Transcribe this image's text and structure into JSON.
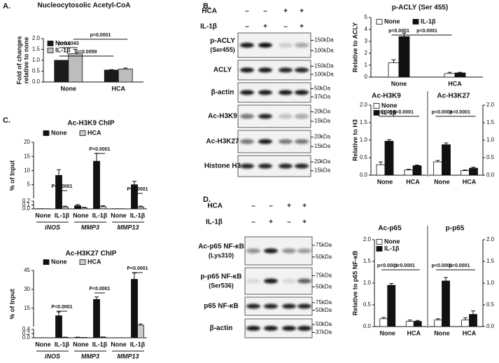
{
  "figure": {
    "panel_labels": [
      "A.",
      "B.",
      "C.",
      "D."
    ]
  },
  "chart_data": [
    {
      "type": "bar",
      "title": "Nucleocytosolic Acetyl-CoA",
      "y_label": [
        "Fold of changes",
        "relative to none"
      ],
      "categories": [
        "None",
        "HCA"
      ],
      "series": [
        {
          "name": "None",
          "color": "#1a1a1a",
          "values": [
            1.0,
            0.55
          ],
          "errors": [
            0.0,
            0.02
          ]
        },
        {
          "name": "IL-1β",
          "color": "#bdbdbd",
          "values": [
            1.3,
            0.6
          ],
          "errors": [
            0.2,
            0.04
          ]
        }
      ],
      "ylim": [
        0,
        2
      ],
      "yticks": [
        {
          "value": 0,
          "label": "0.0"
        },
        0.5,
        {
          "value": 1,
          "label": "1.0"
        },
        1.5,
        {
          "value": 2,
          "label": "2.0"
        }
      ],
      "annotations": [
        "p=0.0343",
        "p=0.0059",
        "p=0.0001"
      ],
      "legend": "upper left"
    },
    {
      "type": "bar",
      "title": "p-ACLY (Ser 455)",
      "y_label": [
        "Relative to ACLY"
      ],
      "categories": [
        "None",
        "HCA"
      ],
      "series": [
        {
          "name": "None",
          "color": "#ffffff",
          "values": [
            1.2,
            0.3
          ],
          "errors": [
            0.25,
            0.1
          ]
        },
        {
          "name": "IL-1β",
          "color": "#111111",
          "values": [
            3.4,
            0.35
          ],
          "errors": [
            0.3,
            0.05
          ]
        }
      ],
      "ylim": [
        0,
        5
      ],
      "yticks": [
        0,
        1,
        2,
        3,
        4,
        5
      ],
      "annotations": [
        "p<0.0001",
        "p<0.0001"
      ],
      "legend": "upper left"
    },
    {
      "type": "bar",
      "title": "Ac-H3K9",
      "y_label": [
        "Relative to H3"
      ],
      "categories": [
        "None",
        "HCA"
      ],
      "series": [
        {
          "name": "None",
          "color": "#ffffff",
          "values": [
            0.3,
            0.15
          ],
          "errors": [
            0.08,
            0.02
          ]
        },
        {
          "name": "IL-1β",
          "color": "#111111",
          "values": [
            0.97,
            0.27
          ],
          "errors": [
            0.04,
            0.02
          ]
        }
      ],
      "ylim": [
        0,
        2
      ],
      "yticks": [
        {
          "value": 0,
          "label": "0.0"
        },
        0.5,
        {
          "value": 1,
          "label": "1.0"
        },
        1.5,
        {
          "value": 2,
          "label": "2.0"
        }
      ],
      "annotations": [
        "p<0.0001",
        "p<0.0001"
      ],
      "legend": "upper left"
    },
    {
      "type": "bar",
      "title": "Ac-H3K27",
      "y_axis": "right",
      "categories": [
        "None",
        "HCA"
      ],
      "series": [
        {
          "name": "None",
          "color": "#ffffff",
          "values": [
            0.38,
            0.13
          ],
          "errors": [
            0.04,
            0.02
          ]
        },
        {
          "name": "IL-1β",
          "color": "#111111",
          "values": [
            0.87,
            0.2
          ],
          "errors": [
            0.05,
            0.03
          ]
        }
      ],
      "ylim": [
        0,
        2
      ],
      "yticks": [
        {
          "value": 0,
          "label": "0.0"
        },
        0.5,
        {
          "value": 1,
          "label": "1.0"
        },
        1.5,
        {
          "value": 2,
          "label": "2.0"
        }
      ],
      "annotations": [
        "p<0.0001",
        "p<0.0001"
      ]
    },
    {
      "type": "bar",
      "title": "Ac-H3K9 ChIP",
      "y_label": [
        "% of Input"
      ],
      "broken_axis": true,
      "categories": [
        "None",
        "IL-1β",
        "None",
        "IL-1β",
        "None",
        "IL-1β"
      ],
      "groups": [
        "iNOS",
        "MMP3",
        "MMP13"
      ],
      "series": [
        {
          "name": "None",
          "color": "#111111",
          "values": [
            0.005,
            8.3,
            0.08,
            13.3,
            0.005,
            5.0
          ],
          "errors": [
            0,
            2.0,
            0.03,
            2.8,
            0,
            1.2
          ]
        },
        {
          "name": "HCA",
          "color": "#cccccc",
          "values": [
            0.004,
            0.05,
            0.03,
            0.06,
            0.004,
            0.05
          ],
          "errors": [
            0,
            0.02,
            0.01,
            0.02,
            0,
            0.02
          ]
        }
      ],
      "ylim": [
        0,
        20
      ],
      "yticks": [
        {
          "value": 0,
          "label": "0.0"
        },
        0.1,
        0.2,
        5,
        10,
        15,
        20
      ],
      "annotations": [
        "P<0.0001",
        "P<0.0001",
        "P<0.0001"
      ],
      "legend": "top"
    },
    {
      "type": "bar",
      "title": "Ac-H3K27 ChIP",
      "y_label": [
        "% of Input"
      ],
      "broken_axis": true,
      "categories": [
        "None",
        "IL-1β",
        "None",
        "IL-1β",
        "None",
        "IL-1β"
      ],
      "groups": [
        "iNOS",
        "MMP3",
        "MMP13"
      ],
      "series": [
        {
          "name": "None",
          "color": "#111111",
          "values": [
            0.005,
            9.0,
            0.02,
            22.0,
            0.005,
            38.0
          ],
          "errors": [
            0,
            3.0,
            0.01,
            2.0,
            0,
            5.0
          ]
        },
        {
          "name": "HCA",
          "color": "#cccccc",
          "values": [
            0.004,
            0.02,
            0.01,
            0.03,
            0.004,
            1.5
          ],
          "errors": [
            0,
            0.01,
            0.005,
            0.01,
            0,
            1.0
          ]
        }
      ],
      "ylim": [
        0,
        45
      ],
      "yticks": [
        {
          "value": 0,
          "label": "0.0"
        },
        0.2,
        0.4,
        15,
        30,
        45
      ],
      "annotations": [
        "P<0.0001",
        "P<0.0001",
        "P<0.0001"
      ],
      "legend": "top"
    },
    {
      "type": "bar",
      "title": "Ac-p65",
      "y_label": [
        "Relative to p65 NF-κB"
      ],
      "categories": [
        "None",
        "HCA"
      ],
      "series": [
        {
          "name": "None",
          "color": "#ffffff",
          "values": [
            0.18,
            0.12
          ],
          "errors": [
            0.03,
            0.03
          ]
        },
        {
          "name": "IL-1β",
          "color": "#111111",
          "values": [
            0.95,
            0.12
          ],
          "errors": [
            0.04,
            0.02
          ]
        }
      ],
      "ylim": [
        0,
        2
      ],
      "yticks": [
        {
          "value": 0,
          "label": "0.0"
        },
        0.5,
        {
          "value": 1,
          "label": "1.0"
        },
        1.5,
        {
          "value": 2,
          "label": "2.0"
        }
      ],
      "annotations": [
        "p<0.0001",
        "p<0.0001"
      ],
      "legend": "upper left"
    },
    {
      "type": "bar",
      "title": "p-p65",
      "y_axis": "right",
      "categories": [
        "None",
        "HCA"
      ],
      "series": [
        {
          "name": "None",
          "color": "#ffffff",
          "values": [
            0.15,
            0.15
          ],
          "errors": [
            0.03,
            0.05
          ]
        },
        {
          "name": "IL-1β",
          "color": "#111111",
          "values": [
            1.05,
            0.28
          ],
          "errors": [
            0.08,
            0.08
          ]
        }
      ],
      "ylim": [
        0,
        2
      ],
      "yticks": [
        {
          "value": 0,
          "label": "0.0"
        },
        0.5,
        {
          "value": 1,
          "label": "1.0"
        },
        1.5,
        {
          "value": 2,
          "label": "2.0"
        }
      ],
      "annotations": [
        "p<0.0001",
        "p<0.0001"
      ]
    }
  ],
  "blots": [
    {
      "header_rows": [
        {
          "label": "HCA",
          "lanes": [
            "–",
            "–",
            "+",
            "+"
          ]
        },
        {
          "label": "IL-1β",
          "lanes": [
            "–",
            "+",
            "–",
            "+"
          ]
        }
      ],
      "rows": [
        {
          "label": "p-ACLY",
          "sublabel": "(Ser455)",
          "markers": [
            "150kDa",
            "100kDa"
          ]
        },
        {
          "label": "ACLY",
          "markers": [
            "150kDa",
            "100kDa"
          ]
        },
        {
          "label": "β-actin",
          "markers": [
            "50kDa",
            "37kDa"
          ]
        },
        {
          "label": "Ac-H3K9",
          "markers": [
            "20kDa",
            "15kDa"
          ]
        },
        {
          "label": "Ac-H3K27",
          "markers": [
            "20kDa",
            "15kDa"
          ]
        },
        {
          "label": "Histone H3",
          "markers": [
            "20kDa",
            "15kDa"
          ]
        }
      ]
    },
    {
      "header_rows": [
        {
          "label": "HCA",
          "lanes": [
            "–",
            "–",
            "+",
            "+"
          ]
        },
        {
          "label": "IL-1β",
          "lanes": [
            "–",
            "+",
            "–",
            "+"
          ]
        }
      ],
      "rows": [
        {
          "label": "Ac-p65 NF-κB",
          "sublabel": "(Lys310)",
          "markers": [
            "75kDa",
            "50kDa"
          ]
        },
        {
          "label": "p-p65 NF-κB",
          "sublabel": "(Ser536)",
          "markers": [
            "75kDa",
            "50kDa"
          ]
        },
        {
          "label": "p65 NF-κB",
          "markers": [
            "75kDa",
            "50kDa"
          ]
        },
        {
          "label": "β-actin",
          "markers": [
            "50kDa",
            "37kDa"
          ]
        }
      ]
    }
  ]
}
